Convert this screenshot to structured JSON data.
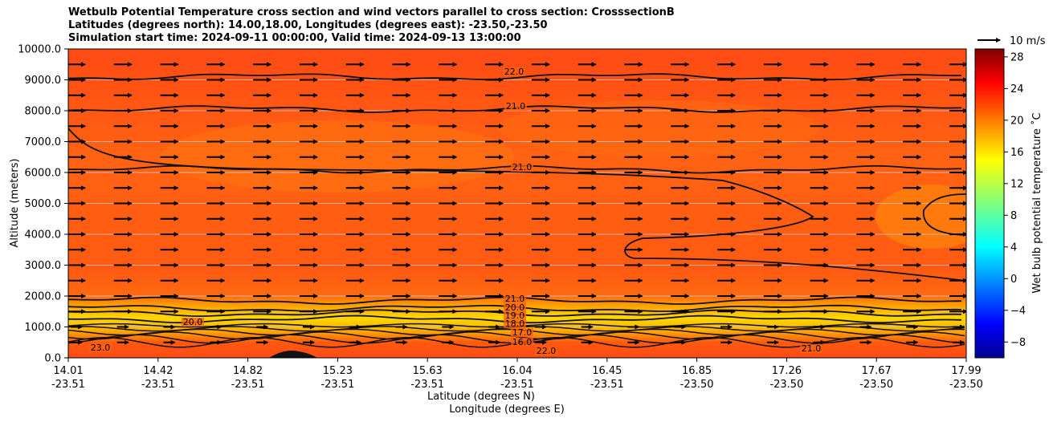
{
  "chart_data": {
    "type": "contour",
    "title_lines": [
      "Wetbulb Potential Temperature cross section and wind vectors parallel to cross section: CrosssectionB",
      "Latitudes (degrees north): 14.00,18.00, Longitudes (degrees east): -23.50,-23.50",
      "Simulation start time: 2024-09-11 00:00:00, Valid time: 2024-09-13 13:00:00"
    ],
    "ylabel": "Altitude (meters)",
    "xlabel_lat": "Latitude (degrees N)",
    "xlabel_lon": "Longitude (degrees E)",
    "ylim": [
      0,
      10000
    ],
    "y_ticks": [
      "0.0",
      "1000.0",
      "2000.0",
      "3000.0",
      "4000.0",
      "5000.0",
      "6000.0",
      "7000.0",
      "8000.0",
      "9000.0",
      "10000.0"
    ],
    "x_ticks": [
      {
        "lat": "14.01",
        "lon": "-23.51"
      },
      {
        "lat": "14.42",
        "lon": "-23.51"
      },
      {
        "lat": "14.82",
        "lon": "-23.51"
      },
      {
        "lat": "15.23",
        "lon": "-23.51"
      },
      {
        "lat": "15.63",
        "lon": "-23.51"
      },
      {
        "lat": "16.04",
        "lon": "-23.51"
      },
      {
        "lat": "16.45",
        "lon": "-23.51"
      },
      {
        "lat": "16.85",
        "lon": "-23.50"
      },
      {
        "lat": "17.26",
        "lon": "-23.50"
      },
      {
        "lat": "17.67",
        "lon": "-23.50"
      },
      {
        "lat": "17.99",
        "lon": "-23.50"
      }
    ],
    "grid": true,
    "colorbar": {
      "label": "Wet bulb potential temperature ˚C",
      "min": -10,
      "max": 29,
      "ticks": [
        "−8",
        "−4",
        "0",
        "4",
        "8",
        "12",
        "16",
        "20",
        "24",
        "28"
      ],
      "colormap": "jet"
    },
    "wind_key_label": "10 m/s",
    "contour_lines": [
      {
        "level": 22.0,
        "label": "22.0",
        "altitude": 9100
      },
      {
        "level": 21.0,
        "label": "21.0",
        "altitude": 8050
      },
      {
        "level": 21.0,
        "label": "21.0",
        "altitude": 6100
      },
      {
        "level": 21.0,
        "label": "21.0",
        "altitude": 1850
      },
      {
        "level": 20.0,
        "label": "20.0",
        "altitude": 1600
      },
      {
        "level": 19.0,
        "label": "19.0",
        "altitude": 1450
      },
      {
        "level": 18.0,
        "label": "18.0",
        "altitude": 1250
      }
    ],
    "contour_labels_visible": [
      "22.0",
      "21.0",
      "21.0",
      "21.0",
      "20.0",
      "19.0",
      "18.0",
      "17.0",
      "16.0",
      "20.0",
      "21.0",
      "22.0",
      "23.0"
    ],
    "wind_vector_levels_m": [
      500,
      1000,
      1500,
      2000,
      2500,
      3000,
      3500,
      4000,
      4500,
      5000,
      5500,
      6000,
      6500,
      7000,
      7500,
      8000,
      8500,
      9000,
      9500
    ],
    "wind_direction": "parallel, toward increasing latitude"
  }
}
